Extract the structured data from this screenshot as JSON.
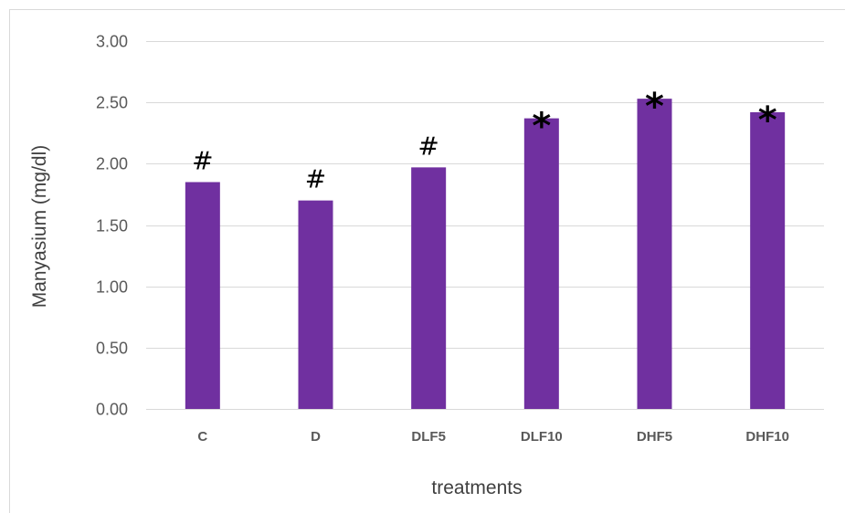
{
  "chart_data": {
    "type": "bar",
    "title": "",
    "xlabel": "treatments",
    "ylabel": "Manyasium (mg/dl)",
    "categories": [
      "C",
      "D",
      "DLF5",
      "DLF10",
      "DHF5",
      "DHF10"
    ],
    "values": [
      1.85,
      1.7,
      1.97,
      2.37,
      2.53,
      2.42
    ],
    "annotations": [
      "#",
      "#",
      "#",
      "*",
      "*",
      "*"
    ],
    "ylim": [
      0,
      3
    ],
    "yticks": [
      "0.00",
      "0.50",
      "1.00",
      "1.50",
      "2.00",
      "2.50",
      "3.00"
    ],
    "grid": true,
    "legend": "none",
    "colors": {
      "bar": "#7030a0"
    }
  }
}
